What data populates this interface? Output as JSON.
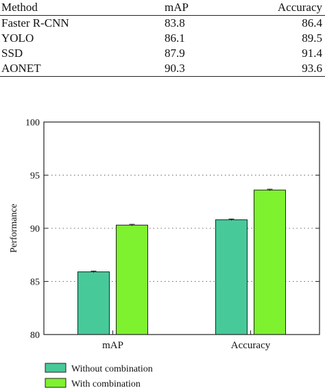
{
  "table": {
    "headers": [
      "Method",
      "mAP",
      "Accuracy"
    ],
    "rows": [
      [
        "Faster R-CNN",
        "83.8",
        "86.4"
      ],
      [
        "YOLO",
        "86.1",
        "89.5"
      ],
      [
        "SSD",
        "87.9",
        "91.4"
      ],
      [
        "AONET",
        "90.3",
        "93.6"
      ]
    ]
  },
  "chart_data": {
    "type": "bar",
    "categories": [
      "mAP",
      "Accuracy"
    ],
    "series": [
      {
        "name": "Without combination",
        "values": [
          85.9,
          90.8
        ],
        "color": "#48c99a"
      },
      {
        "name": "With combination",
        "values": [
          90.3,
          93.6
        ],
        "color": "#7ef22f"
      }
    ],
    "ylabel": "Performance",
    "xlabel": "",
    "title": "",
    "ylim": [
      80,
      100
    ],
    "yticks": [
      80,
      85,
      90,
      95,
      100
    ],
    "grid": "horizontal-dotted",
    "legend": "bottom-left",
    "error_bars": true
  }
}
